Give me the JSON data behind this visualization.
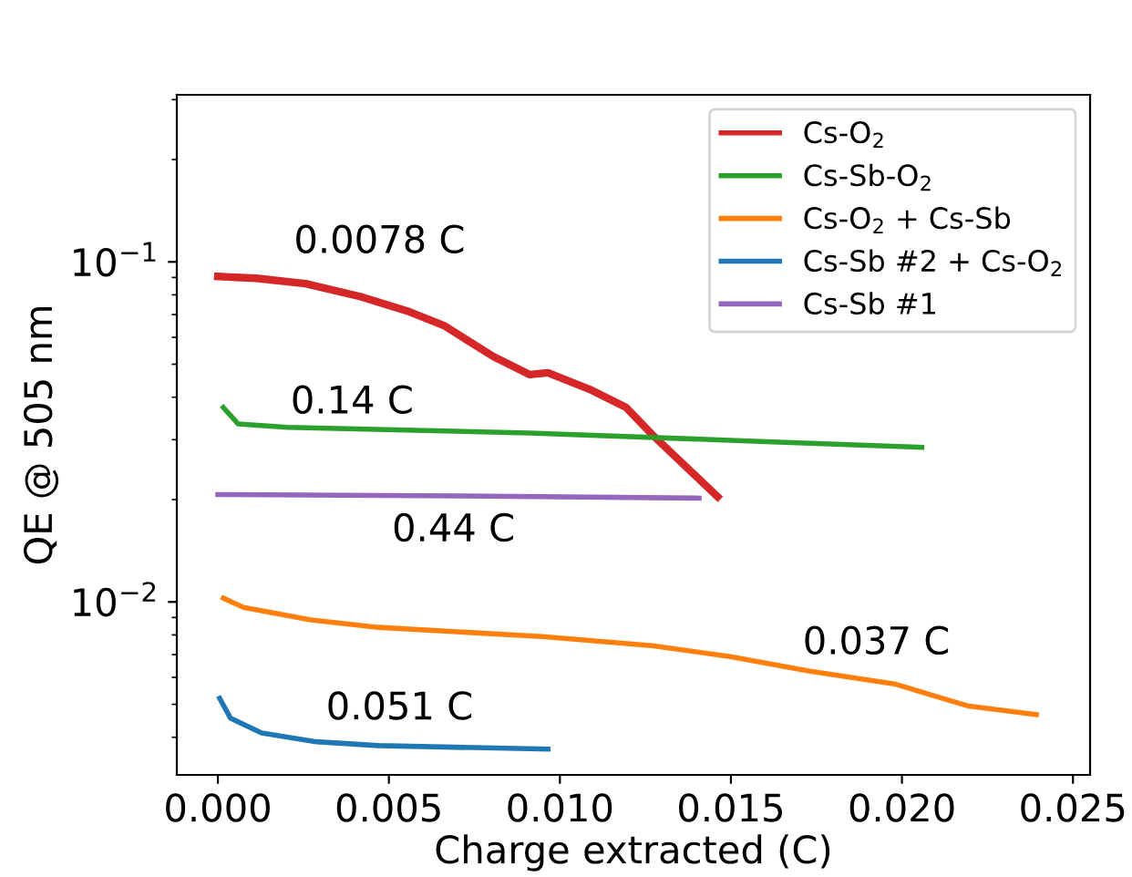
{
  "chart_data": {
    "type": "line",
    "xlabel": "Charge extracted (C)",
    "ylabel": "QE @ 505 nm",
    "log": "y",
    "legend": "top right",
    "grid": false,
    "xlim": [
      -0.0012,
      0.0255
    ],
    "ylim": [
      0.0031,
      0.31
    ],
    "xticks": [
      {
        "value": 0.0,
        "label": "0.000"
      },
      {
        "value": 0.005,
        "label": "0.005"
      },
      {
        "value": 0.01,
        "label": "0.010"
      },
      {
        "value": 0.015,
        "label": "0.015"
      },
      {
        "value": 0.02,
        "label": "0.020"
      },
      {
        "value": 0.025,
        "label": "0.025"
      }
    ],
    "yticks": [
      {
        "value": 0.01,
        "label": "10$^{−2}$"
      },
      {
        "value": 0.1,
        "label": "10$^{−1}$"
      }
    ],
    "series": [
      {
        "name": "Cs-O$_{2}$",
        "color": "#d62728",
        "x": [
          0,
          0.00112,
          0.00256,
          0.00416,
          0.00554,
          0.00661,
          0.00805,
          0.00912,
          0.00965,
          0.01087,
          0.01194,
          0.01269,
          0.01354,
          0.01461
        ],
        "values": [
          0.0906,
          0.0895,
          0.0863,
          0.0791,
          0.0717,
          0.065,
          0.0527,
          0.0466,
          0.0472,
          0.0422,
          0.0373,
          0.0311,
          0.0258,
          0.0204
        ]
      },
      {
        "name": "Cs-Sb-O$_{2}$",
        "color": "#2ca02c",
        "x": [
          0.00016,
          0.00059,
          0.00203,
          0.00912,
          0.01604,
          0.02058
        ],
        "values": [
          0.0373,
          0.0334,
          0.0326,
          0.0314,
          0.0296,
          0.0285
        ]
      },
      {
        "name": "Cs-O$_{2}$ + Cs-Sb",
        "color": "#ff7f0e",
        "x": [
          0.00016,
          0.00075,
          0.00272,
          0.00469,
          0.00949,
          0.01269,
          0.01498,
          0.01727,
          0.01978,
          0.02191,
          0.02393
        ],
        "values": [
          0.01026,
          0.00964,
          0.00885,
          0.00842,
          0.00791,
          0.00744,
          0.00691,
          0.00627,
          0.00574,
          0.00495,
          0.00466
        ]
      },
      {
        "name": "Cs-Sb #2 + Cs-O$_{2}$",
        "color": "#1f77b4",
        "x": [
          5e-05,
          0.00037,
          0.00128,
          0.00288,
          0.00469,
          0.00965
        ],
        "values": [
          0.00521,
          0.00455,
          0.00412,
          0.00388,
          0.00378,
          0.00369
        ]
      },
      {
        "name": "Cs-Sb #1",
        "color": "#9467bd",
        "x": [
          0,
          0.00698,
          0.01407
        ],
        "values": [
          0.0207,
          0.0205,
          0.0202
        ]
      }
    ],
    "annotations": [
      "0.0078 C",
      "0.14 C",
      "0.44 C",
      "0.037 C",
      "0.051 C"
    ]
  }
}
